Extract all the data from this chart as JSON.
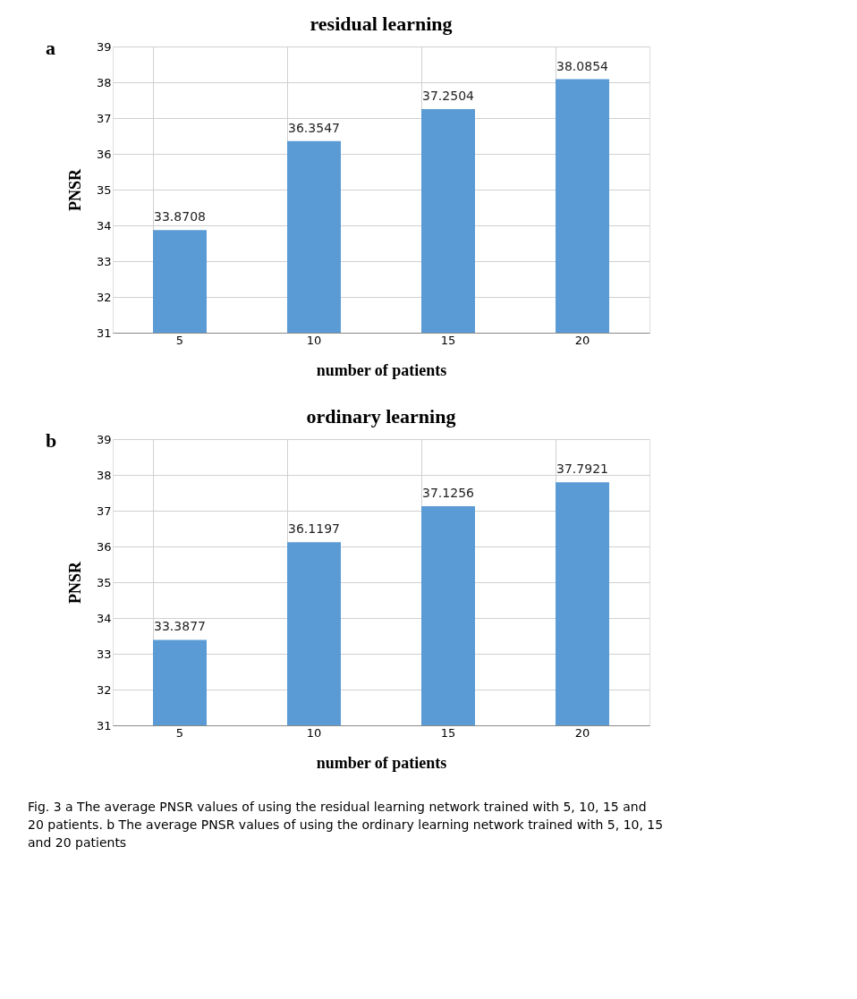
{
  "chart_data": [
    {
      "type": "bar",
      "title": "residual learning",
      "xlabel": "number of patients",
      "ylabel": "PNSR",
      "categories": [
        "5",
        "10",
        "15",
        "20"
      ],
      "values": [
        33.8708,
        36.3547,
        37.2504,
        38.0854
      ],
      "color": "#5b9bd5",
      "ylim": [
        31,
        39
      ],
      "yticks": [
        31,
        32,
        33,
        34,
        35,
        36,
        37,
        38,
        39
      ],
      "grid": true,
      "data_labels": true,
      "annotations": [
        "a"
      ]
    },
    {
      "type": "bar",
      "title": "ordinary learning",
      "xlabel": "number of patients",
      "ylabel": "PNSR",
      "categories": [
        "5",
        "10",
        "15",
        "20"
      ],
      "values": [
        33.3877,
        36.1197,
        37.1256,
        37.7921
      ],
      "color": "#5b9bd5",
      "ylim": [
        31,
        39
      ],
      "yticks": [
        31,
        32,
        33,
        34,
        35,
        36,
        37,
        38,
        39
      ],
      "grid": true,
      "data_labels": true,
      "annotations": [
        "b",
        "Fig. 3 a The average PNSR values of using the residual learning network trained with 5, 10, 15 and 20 patients. b The average PNSR values of using the ordinary learning network trained with 5, 10, 15 and 20 patients"
      ]
    }
  ]
}
